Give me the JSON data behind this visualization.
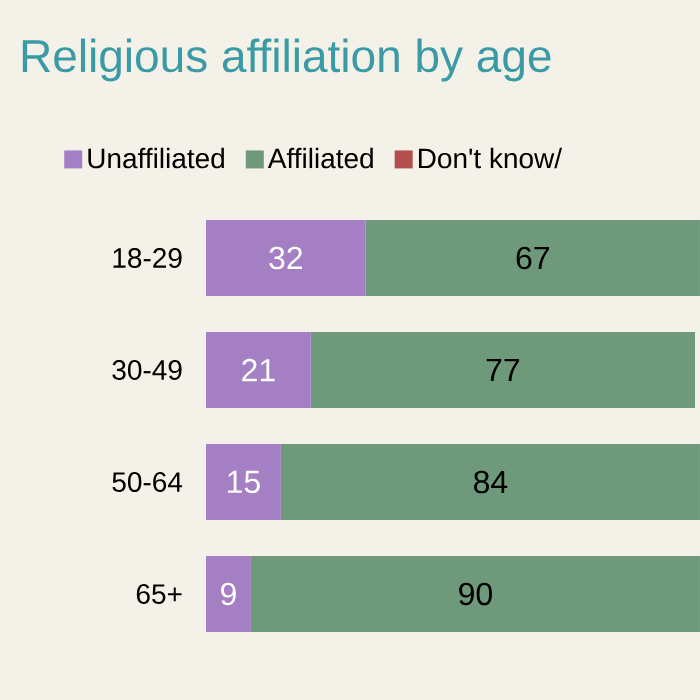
{
  "chart_data": {
    "type": "bar",
    "orientation": "horizontal",
    "stacked": true,
    "title": "Religious affiliation by age",
    "categories": [
      "18-29",
      "30-49",
      "50-64",
      "65+"
    ],
    "series": [
      {
        "name": "Unaffiliated",
        "color": "#a47fc4",
        "values": [
          32,
          21,
          15,
          9
        ]
      },
      {
        "name": "Affiliated",
        "color": "#6e9a7b",
        "values": [
          67,
          77,
          84,
          90
        ]
      },
      {
        "name": "Don't know/",
        "color": "#b3504d",
        "values": [
          null,
          null,
          null,
          null
        ]
      }
    ],
    "data_labels": true,
    "legend": "top"
  }
}
